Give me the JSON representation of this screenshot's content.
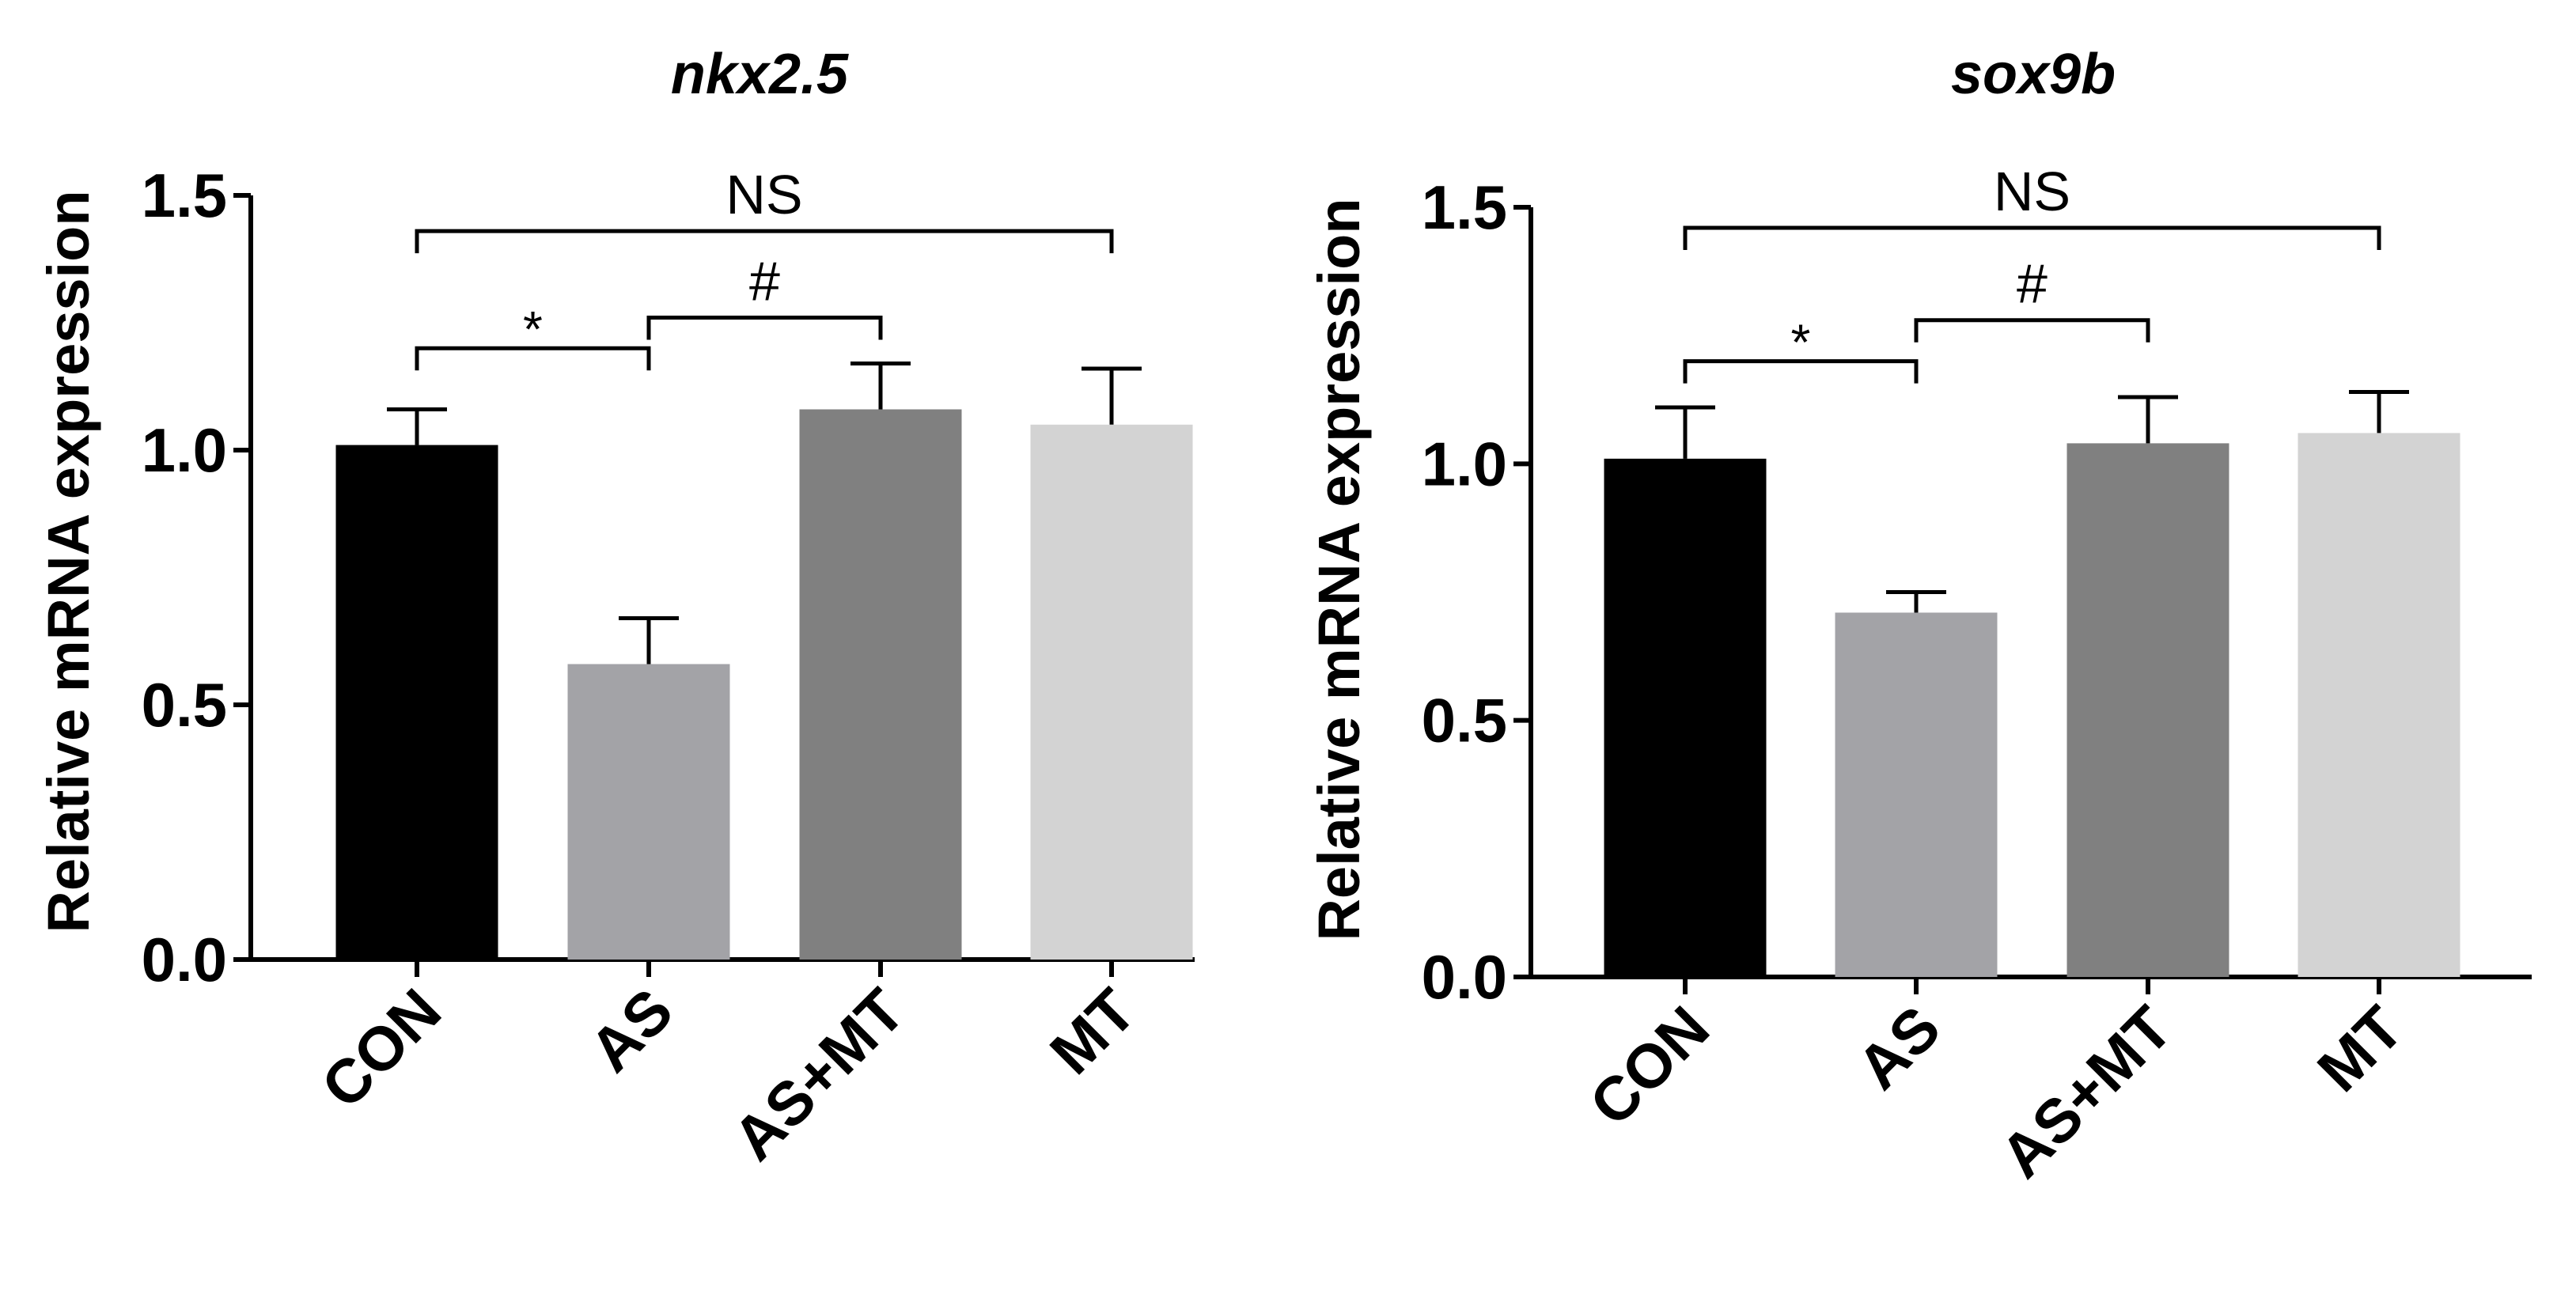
{
  "chart_data": [
    {
      "type": "bar",
      "title": "nkx2.5",
      "ylabel": "Relative mRNA expression",
      "xlabel": "",
      "categories": [
        "CON",
        "AS",
        "AS+MT",
        "MT"
      ],
      "values": [
        1.01,
        0.58,
        1.08,
        1.05
      ],
      "errors": [
        0.07,
        0.09,
        0.09,
        0.11
      ],
      "colors": [
        "#000000",
        "#a3a3a7",
        "#808080",
        "#d3d3d3"
      ],
      "ylim": [
        0,
        1.5
      ],
      "yticks": [
        "0.0",
        "0.5",
        "1.0",
        "1.5"
      ],
      "annotations": [
        {
          "label": "*",
          "from": 0,
          "to": 1,
          "level": 1.2
        },
        {
          "label": "#",
          "from": 1,
          "to": 2,
          "level": 1.26
        },
        {
          "label": "NS",
          "from": 0,
          "to": 3,
          "level": 1.43
        }
      ]
    },
    {
      "type": "bar",
      "title": "sox9b",
      "ylabel": "Relative mRNA expression",
      "xlabel": "",
      "categories": [
        "CON",
        "AS",
        "AS+MT",
        "MT"
      ],
      "values": [
        1.01,
        0.71,
        1.04,
        1.06
      ],
      "errors": [
        0.1,
        0.04,
        0.09,
        0.08
      ],
      "colors": [
        "#000000",
        "#a3a3a7",
        "#808080",
        "#d3d3d3"
      ],
      "ylim": [
        0,
        1.5
      ],
      "yticks": [
        "0.0",
        "0.5",
        "1.0",
        "1.5"
      ],
      "annotations": [
        {
          "label": "*",
          "from": 0,
          "to": 1,
          "level": 1.2
        },
        {
          "label": "#",
          "from": 1,
          "to": 2,
          "level": 1.28
        },
        {
          "label": "NS",
          "from": 0,
          "to": 3,
          "level": 1.46
        }
      ]
    }
  ]
}
